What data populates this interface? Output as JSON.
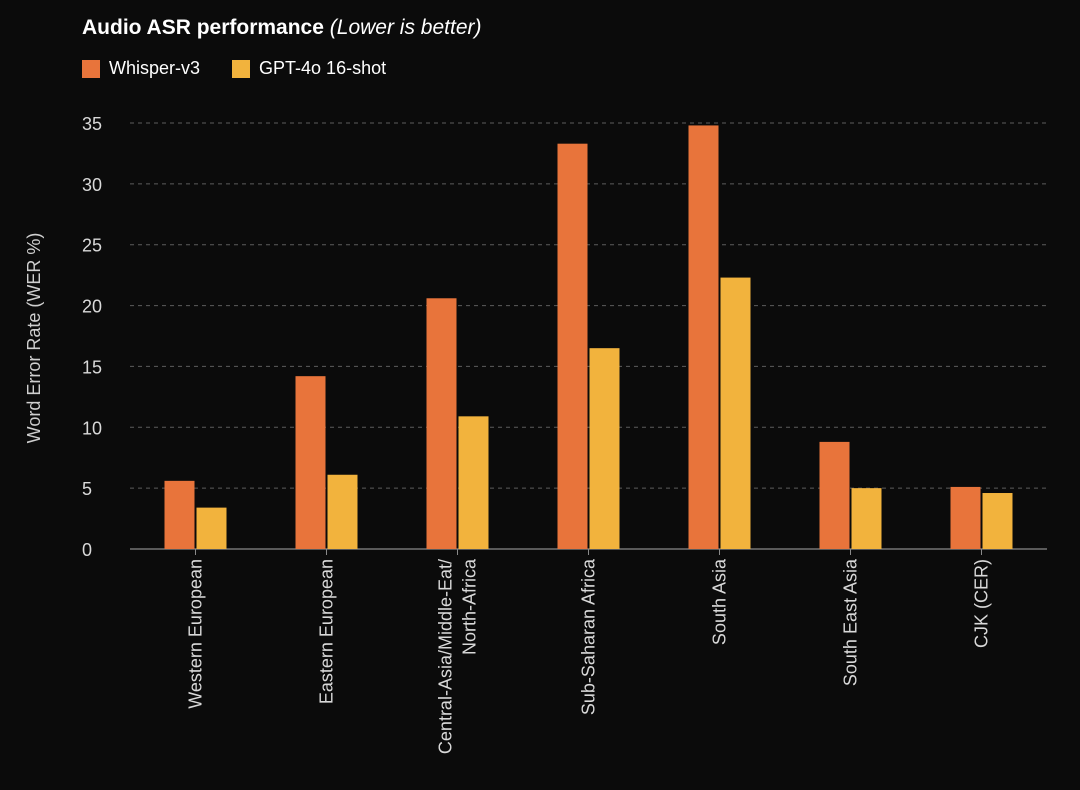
{
  "chart_data": {
    "type": "bar",
    "title": "Audio ASR performance",
    "subtitle": "(Lower is better)",
    "ylabel": "Word Error Rate (WER %)",
    "xlabel": "",
    "ylim": [
      0,
      35
    ],
    "yticks": [
      0,
      5,
      10,
      15,
      20,
      25,
      30,
      35
    ],
    "grid": true,
    "legend_position": "top-left",
    "categories": [
      [
        "Western European"
      ],
      [
        "Eastern European"
      ],
      [
        "Central-Asia/Middle-Eat/",
        "North-Africa"
      ],
      [
        "Sub-Saharan Africa"
      ],
      [
        "South Asia"
      ],
      [
        "South East Asia"
      ],
      [
        "CJK (CER)"
      ]
    ],
    "series": [
      {
        "name": "Whisper-v3",
        "color": "#e8743b",
        "values": [
          5.6,
          14.2,
          20.6,
          33.3,
          34.8,
          8.8,
          5.1
        ]
      },
      {
        "name": "GPT-4o 16-shot",
        "color": "#f2b33d",
        "values": [
          3.4,
          6.1,
          10.9,
          16.5,
          22.3,
          5.0,
          4.6
        ]
      }
    ]
  }
}
